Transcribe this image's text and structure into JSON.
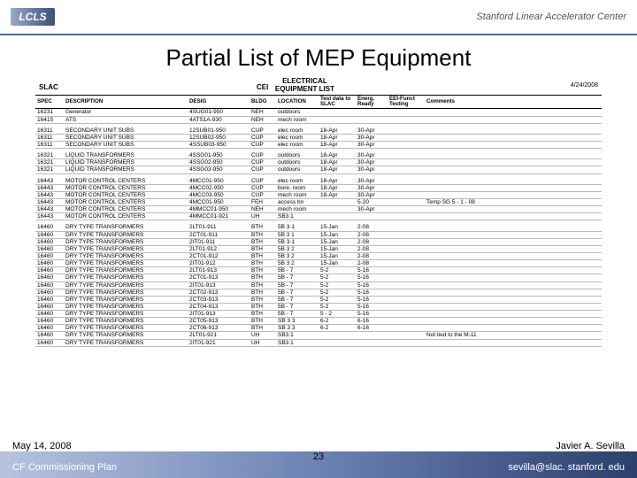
{
  "header": {
    "logo_text": "LCLS",
    "org": "Stanford Linear Accelerator Center"
  },
  "title": "Partial List of MEP Equipment",
  "sheet": {
    "slac_label": "SLAC",
    "cei_label": "CEI",
    "title_line1": "ELECTRICAL",
    "title_line2": "EQUIPMENT LIST",
    "date": "4/24/2008",
    "columns": {
      "spec": "SPEC",
      "desc": "DESCRIPTION",
      "desig": "DESIG",
      "bldg": "BLDG",
      "loc": "LOCATION",
      "test": "Test data to SLAC",
      "energ": "Energ. Ready",
      "eeif": "EEI-Funct Testing",
      "comm": "Comments"
    },
    "groups": [
      [
        {
          "spec": "16231",
          "desc": "Generator",
          "desig": "4SUG01-950",
          "bldg": "NEH",
          "loc": "outdoors",
          "test": "",
          "energ": "",
          "eeif": "",
          "comm": ""
        },
        {
          "spec": "16415",
          "desc": "ATS",
          "desig": "4ATS1A-930",
          "bldg": "NEH",
          "loc": "mech room",
          "test": "",
          "energ": "",
          "eeif": "",
          "comm": ""
        }
      ],
      [
        {
          "spec": "16311",
          "desc": "SECONDARY UNIT SUBS",
          "desig": "12SUB01-950",
          "bldg": "CUP",
          "loc": "elec room",
          "test": "18-Apr",
          "energ": "30-Apr",
          "eeif": "",
          "comm": ""
        },
        {
          "spec": "16311",
          "desc": "SECONDARY UNIT SUBS",
          "desig": "12SUB02-950",
          "bldg": "CUP",
          "loc": "elec room",
          "test": "18-Apr",
          "energ": "30-Apr",
          "eeif": "",
          "comm": ""
        },
        {
          "spec": "16311",
          "desc": "SECONDARY UNIT SUBS",
          "desig": "4SSUB03-950",
          "bldg": "CUP",
          "loc": "elec room",
          "test": "18-Apr",
          "energ": "30-Apr",
          "eeif": "",
          "comm": ""
        }
      ],
      [
        {
          "spec": "16321",
          "desc": "LIQUID TRANSFORMERS",
          "desig": "4SSG01-950",
          "bldg": "CUP",
          "loc": "outdoors",
          "test": "18-Apr",
          "energ": "30-Apr",
          "eeif": "",
          "comm": ""
        },
        {
          "spec": "16321",
          "desc": "LIQUID TRANSFORMERS",
          "desig": "4SSG02-950",
          "bldg": "CUP",
          "loc": "outdoors",
          "test": "18-Apr",
          "energ": "30-Apr",
          "eeif": "",
          "comm": ""
        },
        {
          "spec": "16321",
          "desc": "LIQUID TRANSFORMERS",
          "desig": "4SSG03-950",
          "bldg": "CUP",
          "loc": "outdoors",
          "test": "18-Apr",
          "energ": "30-Apr",
          "eeif": "",
          "comm": ""
        }
      ],
      [
        {
          "spec": "16443",
          "desc": "MOTOR CONTROL CENTERS",
          "desig": "4MCC01-950",
          "bldg": "CUP",
          "loc": "elec room",
          "test": "18-Apr",
          "energ": "30-Apr",
          "eeif": "",
          "comm": ""
        },
        {
          "spec": "16443",
          "desc": "MOTOR CONTROL CENTERS",
          "desig": "4MCC02-950",
          "bldg": "CUP",
          "loc": "bore. room",
          "test": "18-Apr",
          "energ": "30-Apr",
          "eeif": "",
          "comm": ""
        },
        {
          "spec": "16443",
          "desc": "MOTOR CONTROL CENTERS",
          "desig": "4MCC03-950",
          "bldg": "CUP",
          "loc": "mech room",
          "test": "18-Apr",
          "energ": "30-Apr",
          "eeif": "",
          "comm": ""
        },
        {
          "spec": "16443",
          "desc": "MOTOR CONTROL CENTERS",
          "desig": "4MCC01-950",
          "bldg": "FEH",
          "loc": "access bn",
          "test": "",
          "energ": "5-20",
          "eeif": "",
          "comm": "Temp SG 5 - 1 - 08"
        },
        {
          "spec": "16443",
          "desc": "MOTOR CONTROL CENTERS",
          "desig": "4MMCC01-950",
          "bldg": "NEH",
          "loc": "mech room",
          "test": "",
          "energ": "30-Apr",
          "eeif": "",
          "comm": ""
        },
        {
          "spec": "16443",
          "desc": "MOTOR CONTROL CENTERS",
          "desig": "4MMCC01-921",
          "bldg": "UH",
          "loc": "SB3.1",
          "test": "",
          "energ": "",
          "eeif": "",
          "comm": ""
        }
      ],
      [
        {
          "spec": "16460",
          "desc": "DRY TYPE TRANSFORMERS",
          "desig": "2LT01-911",
          "bldg": "BTH",
          "loc": "5B 3-1",
          "test": "15-Jan",
          "energ": "2-08",
          "eeif": "",
          "comm": ""
        },
        {
          "spec": "16460",
          "desc": "DRY TYPE TRANSFORMERS",
          "desig": "2CT01-911",
          "bldg": "BTH",
          "loc": "5B 3 1",
          "test": "15-Jan",
          "energ": "2-08",
          "eeif": "",
          "comm": ""
        },
        {
          "spec": "16460",
          "desc": "DRY TYPE TRANSFORMERS",
          "desig": "2IT01-911",
          "bldg": "BTH",
          "loc": "5B 3-1",
          "test": "15-Jan",
          "energ": "2-08",
          "eeif": "",
          "comm": ""
        },
        {
          "spec": "16460",
          "desc": "DRY TYPE TRANSFORMERS",
          "desig": "2LT01-912",
          "bldg": "BTH",
          "loc": "5B 3 2",
          "test": "15-Jan",
          "energ": "2-08",
          "eeif": "",
          "comm": ""
        },
        {
          "spec": "16460",
          "desc": "DRY TYPE TRANSFORMERS",
          "desig": "2CT01-912",
          "bldg": "BTH",
          "loc": "5B 3 2",
          "test": "15-Jan",
          "energ": "2-08",
          "eeif": "",
          "comm": ""
        },
        {
          "spec": "16460",
          "desc": "DRY TYPE TRANSFORMERS",
          "desig": "2IT01-912",
          "bldg": "BTH",
          "loc": "5B 3 2",
          "test": "15-Jan",
          "energ": "2-08",
          "eeif": "",
          "comm": ""
        },
        {
          "spec": "16460",
          "desc": "DRY TYPE TRANSFORMERS",
          "desig": "2LT01-913",
          "bldg": "BTH",
          "loc": "5B - 7",
          "test": "5-2",
          "energ": "5-16",
          "eeif": "",
          "comm": ""
        },
        {
          "spec": "16460",
          "desc": "DRY TYPE TRANSFORMERS",
          "desig": "2CT01-913",
          "bldg": "BTH",
          "loc": "5B - 7",
          "test": "5-2",
          "energ": "5-16",
          "eeif": "",
          "comm": ""
        },
        {
          "spec": "16460",
          "desc": "DRY TYPE TRANSFORMERS",
          "desig": "2IT01-913",
          "bldg": "BTH",
          "loc": "5B - 7",
          "test": "5-2",
          "energ": "5-16",
          "eeif": "",
          "comm": ""
        },
        {
          "spec": "16460",
          "desc": "DRY TYPE TRANSFORMERS",
          "desig": "2CT02-913",
          "bldg": "BTH",
          "loc": "5B - 7",
          "test": "5-2",
          "energ": "5-16",
          "eeif": "",
          "comm": ""
        },
        {
          "spec": "16460",
          "desc": "DRY TYPE TRANSFORMERS",
          "desig": "2CT03-913",
          "bldg": "BTH",
          "loc": "5B - 7",
          "test": "5-2",
          "energ": "5-16",
          "eeif": "",
          "comm": ""
        },
        {
          "spec": "16460",
          "desc": "DRY TYPE TRANSFORMERS",
          "desig": "2CT04-913",
          "bldg": "BTH",
          "loc": "5B - 7",
          "test": "5-2",
          "energ": "5-16",
          "eeif": "",
          "comm": ""
        },
        {
          "spec": "16460",
          "desc": "DRY TYPE TRANSFORMERS",
          "desig": "2IT01-913",
          "bldg": "BTH",
          "loc": "5B - 7",
          "test": "5 - 2",
          "energ": "5-16",
          "eeif": "",
          "comm": ""
        },
        {
          "spec": "16460",
          "desc": "DRY TYPE TRANSFORMERS",
          "desig": "2CT05-913",
          "bldg": "BTH",
          "loc": "SB 3 3",
          "test": "6-2",
          "energ": "6-16",
          "eeif": "",
          "comm": ""
        },
        {
          "spec": "16460",
          "desc": "DRY TYPE TRANSFORMERS",
          "desig": "2CT06-913",
          "bldg": "BTH",
          "loc": "SB 3 3",
          "test": "6-2",
          "energ": "6-16",
          "eeif": "",
          "comm": ""
        },
        {
          "spec": "16460",
          "desc": "DRY TYPE TRANSFORMERS",
          "desig": "2LT01-921",
          "bldg": "UH",
          "loc": "SB3.1",
          "test": "",
          "energ": "",
          "eeif": "",
          "comm": "Not tied to the M-11"
        },
        {
          "spec": "16460",
          "desc": "DRY TYPE TRANSFORMERS",
          "desig": "2IT01-921",
          "bldg": "UH",
          "loc": "SB3.1",
          "test": "",
          "energ": "",
          "eeif": "",
          "comm": ""
        }
      ]
    ]
  },
  "footer": {
    "date": "May 14, 2008",
    "plan": "CF Commissioning Plan",
    "page": "23",
    "name": "Javier A. Sevilla",
    "email": "sevilla@slac. stanford. edu"
  }
}
